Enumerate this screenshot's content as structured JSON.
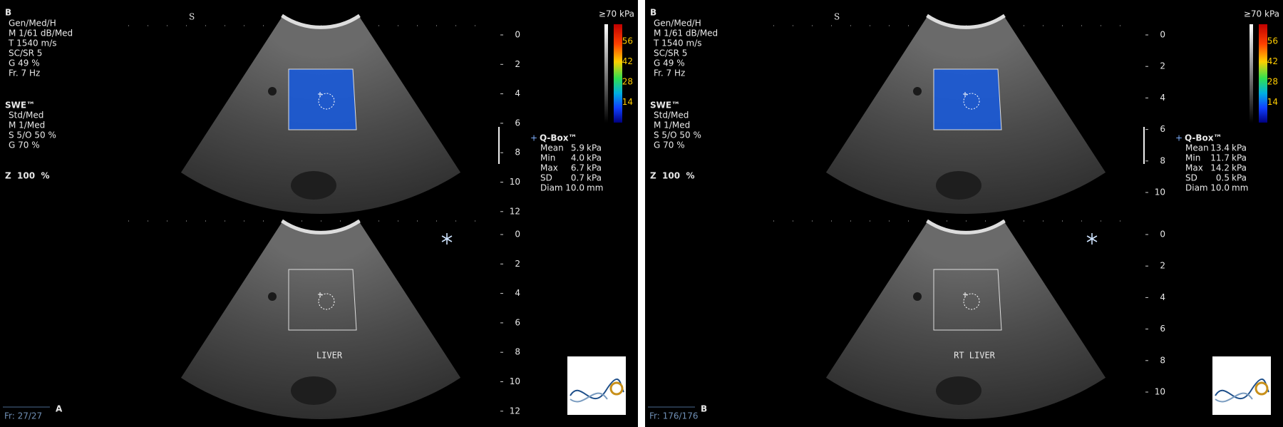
{
  "panels": [
    {
      "label": "A",
      "mode": "B",
      "probe_mark": "S",
      "settings": [
        "Gen/Med/H",
        "M 1/61 dB/Med",
        "T 1540 m/s",
        "SC/SR 5",
        "G 49 %",
        "Fr. 7 Hz"
      ],
      "swe_title": "SWE™",
      "swe_settings": [
        "Std/Med",
        "M 1/Med",
        "S 5/O 50 %",
        "G 70 %"
      ],
      "zoom": "Z  100  %",
      "scale_title": "≥70 kPa",
      "scale_ticks": [
        56,
        42,
        28,
        14
      ],
      "depth_top": [
        0,
        2,
        4,
        6,
        8,
        10,
        12
      ],
      "depth_bottom": [
        0,
        2,
        4,
        6,
        8,
        10,
        12
      ],
      "qbox_title": "Q-Box™",
      "qbox_rows": [
        [
          "Mean",
          "5.9",
          "kPa"
        ],
        [
          "Min",
          "4.0",
          "kPa"
        ],
        [
          "Max",
          "6.7",
          "kPa"
        ],
        [
          "SD",
          "0.7",
          "kPa"
        ],
        [
          "Diam",
          "10.0",
          "mm"
        ]
      ],
      "organ": "LIVER",
      "frame": "Fr: 27/27"
    },
    {
      "label": "B",
      "mode": "B",
      "probe_mark": "S",
      "settings": [
        "Gen/Med/H",
        "M 1/61 dB/Med",
        "T 1540 m/s",
        "SC/SR 5",
        "G 49 %",
        "Fr. 7 Hz"
      ],
      "swe_title": "SWE™",
      "swe_settings": [
        "Std/Med",
        "M 1/Med",
        "S 5/O 50 %",
        "G 70 %"
      ],
      "zoom": "Z  100  %",
      "scale_title": "≥70 kPa",
      "scale_ticks": [
        56,
        42,
        28,
        14
      ],
      "depth_top": [
        0,
        2,
        4,
        6,
        8,
        10
      ],
      "depth_bottom": [
        0,
        2,
        4,
        6,
        8,
        10
      ],
      "qbox_title": "Q-Box™",
      "qbox_rows": [
        [
          "Mean",
          "13.4",
          "kPa"
        ],
        [
          "Min",
          "11.7",
          "kPa"
        ],
        [
          "Max",
          "14.2",
          "kPa"
        ],
        [
          "SD",
          "0.5",
          "kPa"
        ],
        [
          "Diam",
          "10.0",
          "mm"
        ]
      ],
      "organ": "RT LIVER",
      "frame": "Fr: 176/176"
    }
  ]
}
